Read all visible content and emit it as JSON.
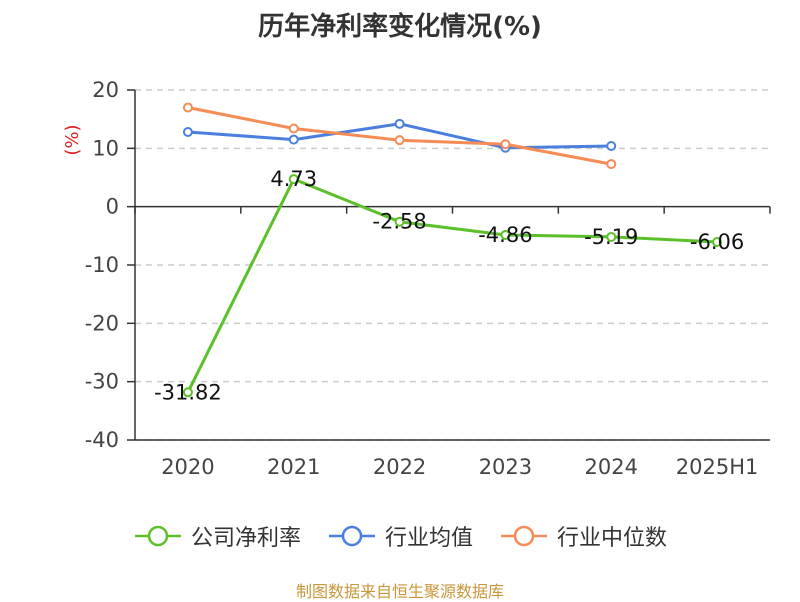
{
  "title": "历年净利率变化情况(%)",
  "source": "制图数据来自恒生聚源数据库",
  "chart_data": {
    "type": "line",
    "title": "历年净利率变化情况(%)",
    "ylabel": "(%)",
    "xlabel": "",
    "categories": [
      "2020",
      "2021",
      "2022",
      "2023",
      "2024",
      "2025H1"
    ],
    "ylim": [
      -40,
      20
    ],
    "yticks": [
      20,
      10,
      0,
      -10,
      -20,
      -30,
      -40
    ],
    "grid": true,
    "legend_position": "bottom",
    "series": [
      {
        "name": "公司净利率",
        "color": "#5cc02a",
        "values": [
          -31.82,
          4.73,
          -2.58,
          -4.86,
          -5.19,
          -6.06
        ],
        "labels": [
          "-31.82",
          "4.73",
          "-2.58",
          "-4.86",
          "-5.19",
          "-6.06"
        ]
      },
      {
        "name": "行业均值",
        "color": "#4a7fde",
        "values": [
          12.8,
          11.5,
          14.2,
          10.1,
          10.4,
          null
        ]
      },
      {
        "name": "行业中位数",
        "color": "#f58b55",
        "values": [
          17.0,
          13.4,
          11.4,
          10.7,
          7.3,
          null
        ]
      }
    ]
  }
}
